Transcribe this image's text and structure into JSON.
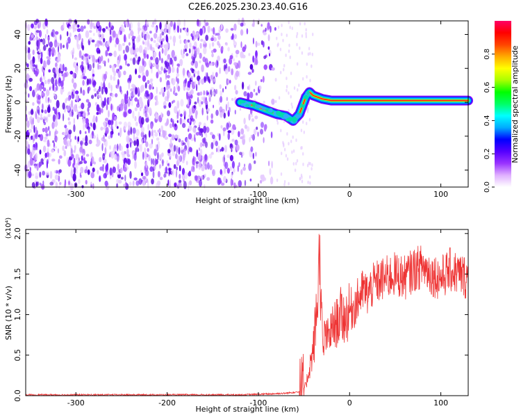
{
  "title": "C2E6.2025.230.23.40.G16",
  "chart_data": [
    {
      "type": "heatmap",
      "title": "C2E6.2025.230.23.40.G16",
      "xlabel": "Height of straight line (km)",
      "ylabel": "Frequency (Hz)",
      "xlim": [
        -355,
        130
      ],
      "ylim": [
        -50,
        48
      ],
      "xticks": [
        -300,
        -200,
        -100,
        0,
        100
      ],
      "yticks": [
        -40,
        -20,
        0,
        20,
        40
      ],
      "grid": false,
      "signal_trace": {
        "x": [
          -120,
          -105,
          -90,
          -80,
          -70,
          -62,
          -55,
          -48,
          -44,
          -40,
          -30,
          -20,
          0,
          20,
          50,
          80,
          110,
          130
        ],
        "y": [
          0,
          -2,
          -5,
          -7,
          -8,
          -11,
          -7,
          3,
          6,
          4,
          2,
          1,
          1,
          1,
          1,
          1,
          1,
          1
        ]
      },
      "noise_region_x": [
        -355,
        -80
      ],
      "colorbar": {
        "label": "Normalized spectral amplitude",
        "range": [
          0.0,
          1.0
        ],
        "ticks": [
          0.0,
          0.2,
          0.4,
          0.6,
          0.8
        ],
        "colors": [
          "#ffffff",
          "#e0b0ff",
          "#9933ff",
          "#5500ff",
          "#0000ff",
          "#00aaff",
          "#00ffff",
          "#00ff66",
          "#00ff00",
          "#aaff00",
          "#ffff00",
          "#ffaa00",
          "#ff4400",
          "#ff0000",
          "#ff0066"
        ]
      }
    },
    {
      "type": "line",
      "xlabel": "Height of straight line (km)",
      "ylabel": "SNR (10 * v/v)",
      "y_multiplier": "(x10⁴)",
      "xlim": [
        -355,
        130
      ],
      "ylim": [
        0,
        2.05
      ],
      "xticks": [
        -300,
        -200,
        -100,
        0,
        100
      ],
      "yticks": [
        0.0,
        0.5,
        1.0,
        1.5,
        2.0
      ],
      "grid": false,
      "line_color": "#ee3333",
      "series": [
        {
          "x": [
            -355,
            -330,
            -300,
            -270,
            -240,
            -210,
            -180,
            -150,
            -120,
            -90,
            -70,
            -55,
            -48,
            -44,
            -40,
            -37,
            -35,
            -33,
            -31,
            -29,
            -27,
            -25,
            -22,
            -18,
            -14,
            -10,
            -5,
            0,
            5,
            10,
            15,
            20,
            25,
            30,
            40,
            50,
            60,
            70,
            80,
            90,
            100,
            110,
            120,
            130
          ],
          "y": [
            0.01,
            0.01,
            0.01,
            0.01,
            0.01,
            0.01,
            0.01,
            0.01,
            0.01,
            0.02,
            0.03,
            0.05,
            0.12,
            0.35,
            0.55,
            0.9,
            1.2,
            1.87,
            1.0,
            0.5,
            0.8,
            0.7,
            0.75,
            0.85,
            0.9,
            1.0,
            0.95,
            1.05,
            1.1,
            1.2,
            1.3,
            1.25,
            1.35,
            1.4,
            1.45,
            1.5,
            1.45,
            1.55,
            1.6,
            1.5,
            1.45,
            1.55,
            1.5,
            1.45
          ]
        }
      ]
    }
  ]
}
